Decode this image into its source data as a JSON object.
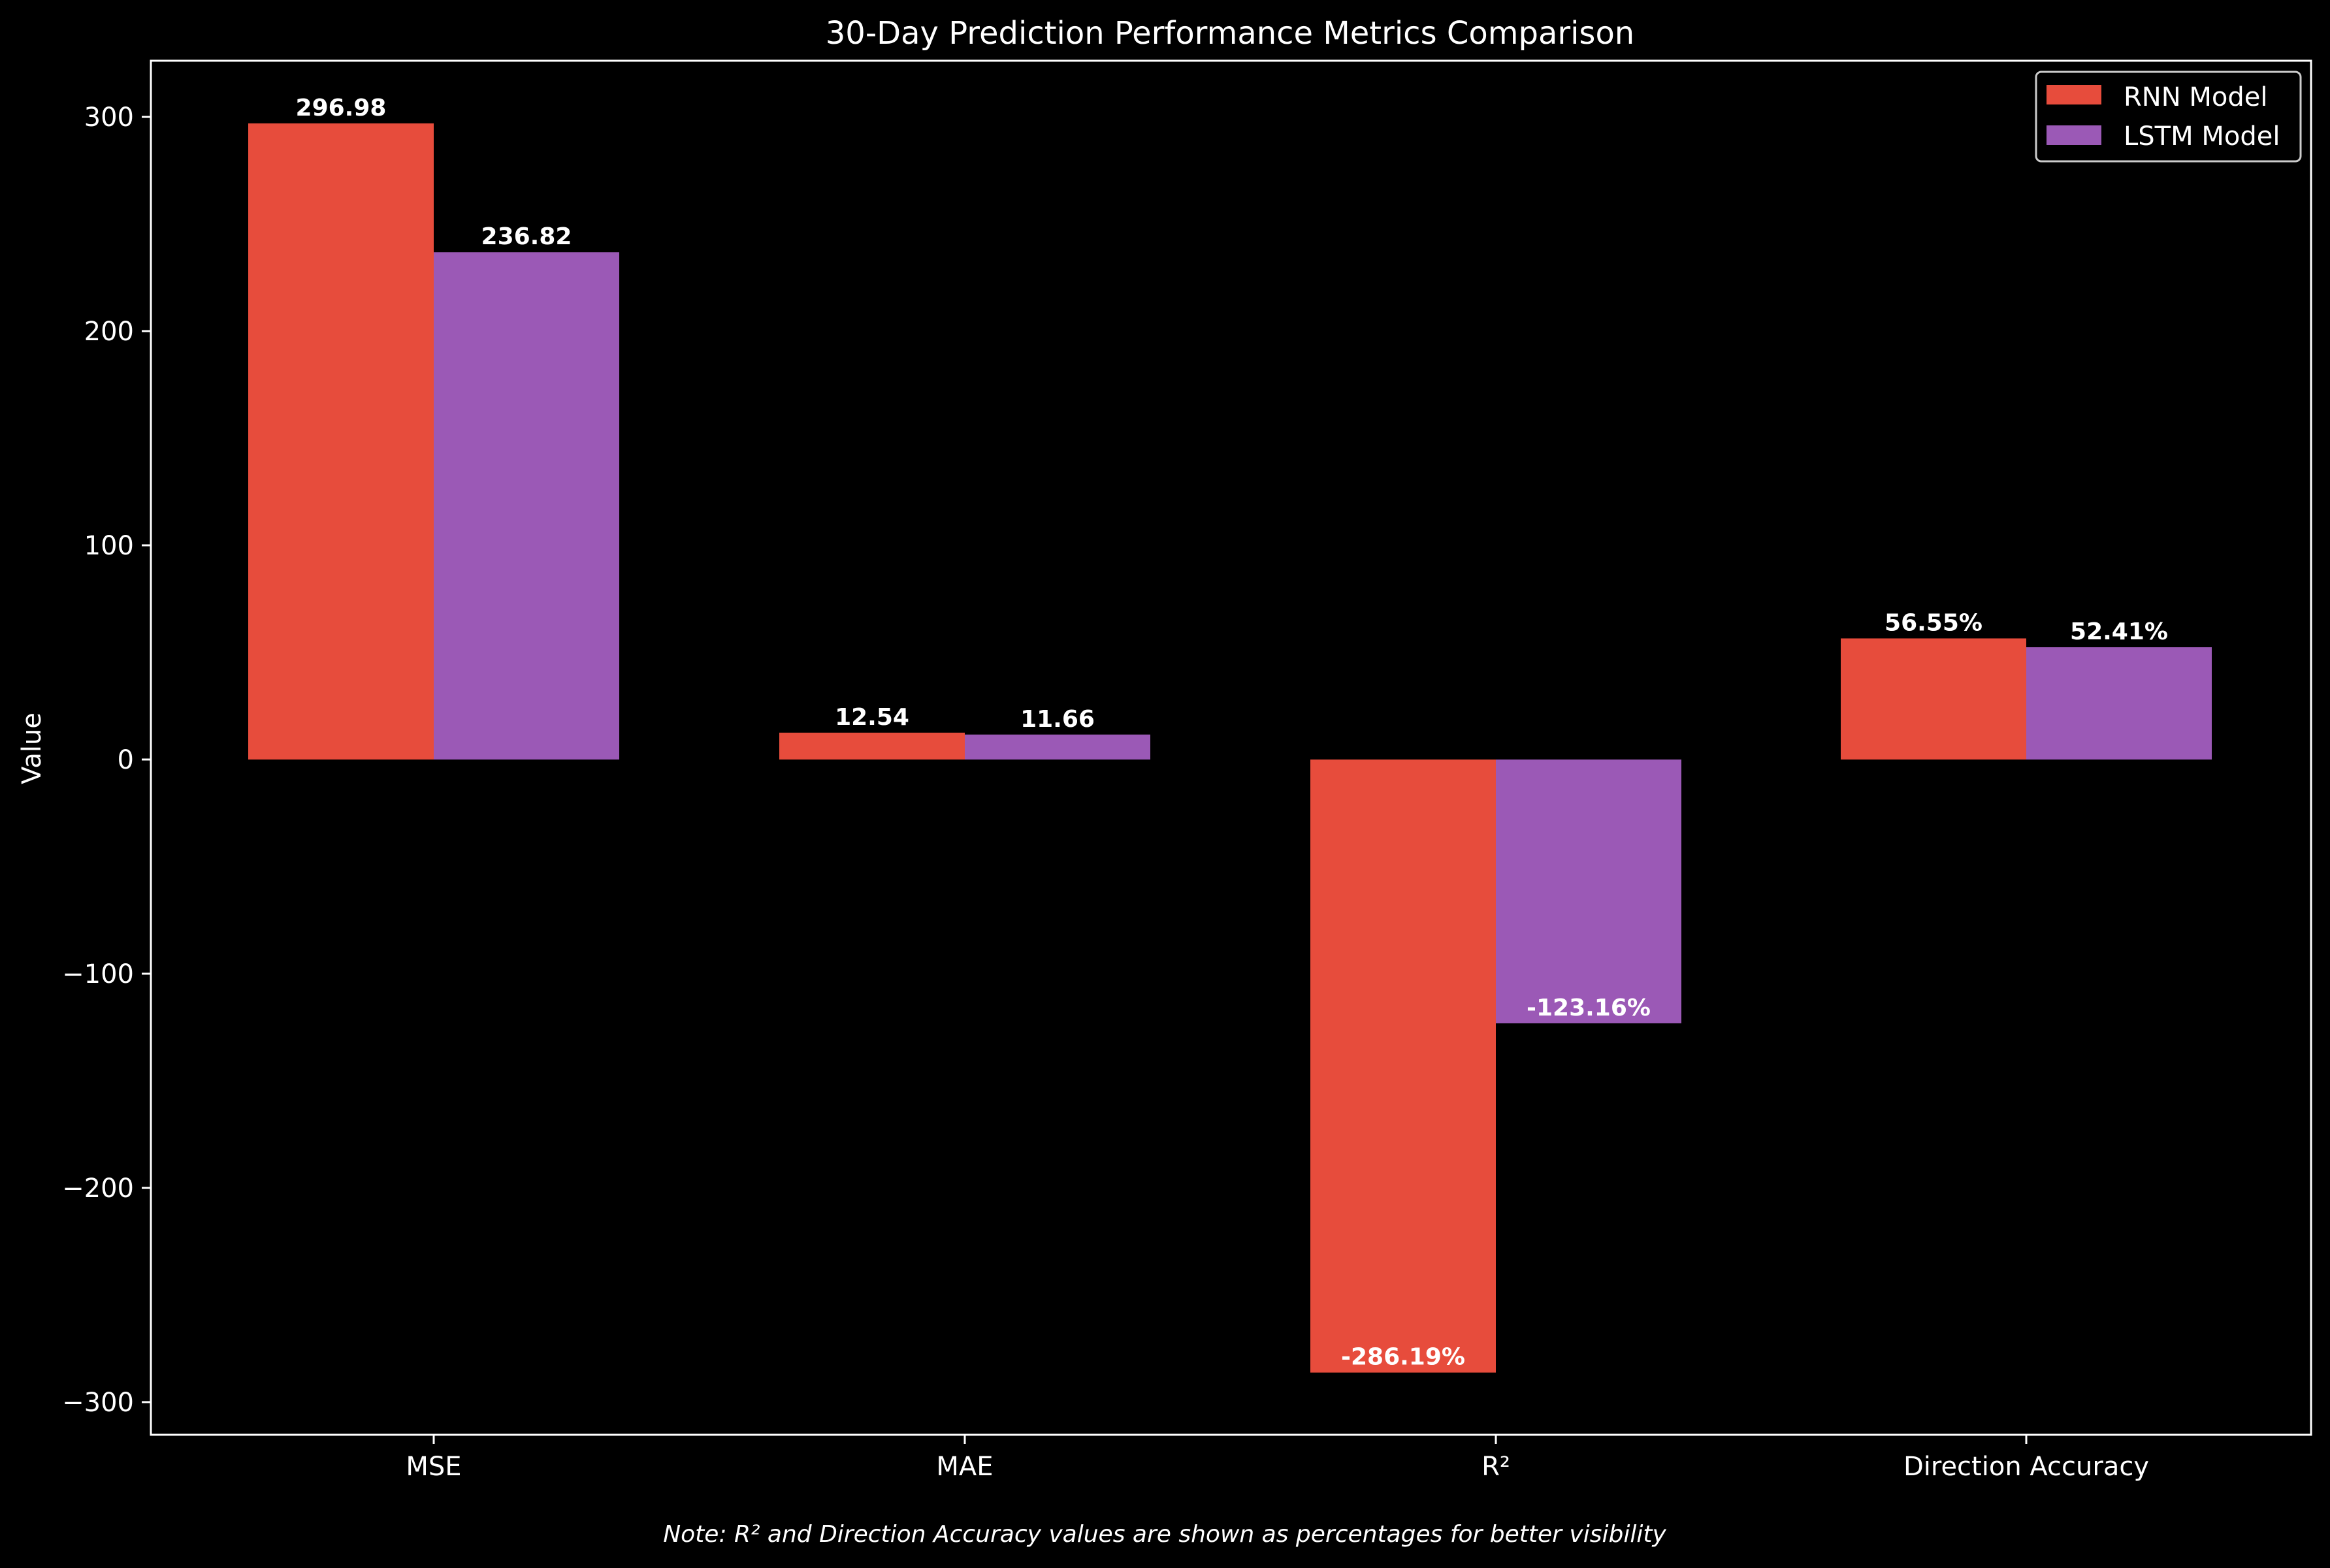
{
  "chart_data": {
    "type": "bar",
    "title": "30-Day Prediction Performance Metrics Comparison",
    "ylabel": "Value",
    "xlabel": "",
    "categories": [
      "MSE",
      "MAE",
      "R²",
      "Direction Accuracy"
    ],
    "series": [
      {
        "name": "RNN Model",
        "color": "#e74c3c",
        "values": [
          296.98,
          12.54,
          -286.19,
          56.55
        ],
        "labels": [
          "296.98",
          "12.54",
          "-286.19%",
          "56.55%"
        ]
      },
      {
        "name": "LSTM Model",
        "color": "#9b59b6",
        "values": [
          236.82,
          11.66,
          -123.16,
          52.41
        ],
        "labels": [
          "236.82",
          "11.66",
          "-123.16%",
          "52.41%"
        ]
      }
    ],
    "ylim": [
      -315,
      326
    ],
    "yticks": [
      300,
      200,
      100,
      0,
      -100,
      -200,
      -300
    ],
    "ytick_labels": [
      "300",
      "200",
      "100",
      "0",
      "−100",
      "−200",
      "−300"
    ],
    "legend_position": "top-right",
    "grid": false,
    "note": "Note: R² and Direction Accuracy values are shown as percentages for better visibility"
  }
}
